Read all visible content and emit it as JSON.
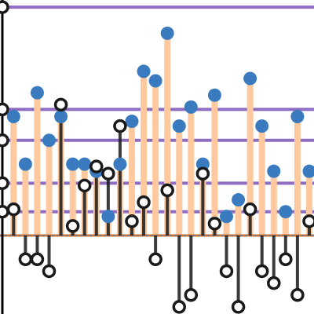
{
  "chart_data": {
    "type": "stem",
    "title": "",
    "xlabel": "",
    "ylabel": "",
    "x": [
      1,
      2,
      3,
      4,
      5,
      6,
      7,
      8,
      9,
      10,
      11,
      12,
      13,
      14,
      15,
      16,
      17,
      18,
      19,
      20,
      21,
      22,
      23,
      24,
      25,
      26
    ],
    "xlim": [
      -0.15,
      26.4
    ],
    "ylim": [
      -3.3,
      9.9
    ],
    "baseline": 0,
    "grid": "off",
    "series": [
      {
        "style": "stem-filled-marker",
        "line_color": "#ffc9a0",
        "marker_color": "#3a7bbf",
        "values": [
          5.0,
          3.0,
          6.0,
          4.0,
          5.0,
          3.0,
          3.0,
          2.7,
          0.8,
          3.0,
          4.8,
          6.9,
          6.5,
          8.5,
          4.6,
          5.4,
          3.0,
          5.9,
          0.8,
          1.5,
          6.6,
          4.6,
          2.7,
          1.0,
          5.0,
          2.7
        ]
      },
      {
        "style": "stem-hollow-marker",
        "line_color": "#1a1a1a",
        "marker_color": "#ffffff",
        "values": [
          1.1,
          -1.0,
          -1.0,
          -1.5,
          5.5,
          0.4,
          2.1,
          2.9,
          2.6,
          4.6,
          0.6,
          1.4,
          -1.0,
          1.9,
          -3.0,
          -2.5,
          2.6,
          0.5,
          -1.5,
          -3.0,
          1.1,
          -1.5,
          -2.0,
          -1.0,
          -2.5,
          0.6
        ]
      }
    ],
    "reference_lines": {
      "color": "#8e6cbf",
      "y": [
        9.6,
        5.3,
        4.0,
        2.2,
        1.0
      ]
    },
    "left_axis_markers": [
      1.0,
      2.2,
      4.0,
      5.3,
      9.6
    ]
  }
}
